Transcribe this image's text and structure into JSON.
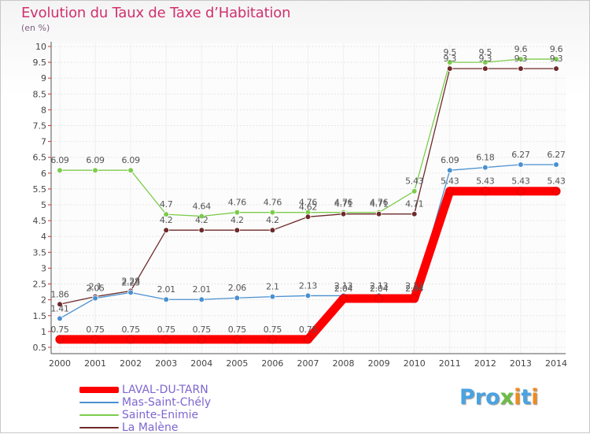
{
  "chart_data": {
    "type": "line",
    "title": "Evolution du Taux de Taxe d’Habitation",
    "subtitle": "(en %)",
    "x": [
      "2000",
      "2001",
      "2002",
      "2003",
      "2004",
      "2005",
      "2006",
      "2007",
      "2008",
      "2009",
      "2010",
      "2011",
      "2012",
      "2013",
      "2014"
    ],
    "y_ticks": [
      0.5,
      1,
      1.5,
      2,
      2.5,
      3,
      3.5,
      4,
      4.5,
      5,
      5.5,
      6,
      6.5,
      7,
      7.5,
      8,
      8.5,
      9,
      9.5,
      10
    ],
    "ylim": [
      0.3,
      10
    ],
    "grid": true,
    "legend_position": "bottom-left",
    "series": [
      {
        "name": "LAVAL-DU-TARN",
        "color": "#ff0000",
        "values": [
          0.75,
          0.75,
          0.75,
          0.75,
          0.75,
          0.75,
          0.75,
          0.75,
          2.04,
          2.04,
          2.04,
          5.43,
          5.43,
          5.43,
          5.43
        ],
        "labels": [
          "0.75",
          "0.75",
          "0.75",
          "0.75",
          "0.75",
          "0.75",
          "0.75",
          "0.75",
          "2.04",
          "2.04",
          "2.04",
          "5.43",
          "5.43",
          "5.43",
          "5.43"
        ]
      },
      {
        "name": "Mas-Saint-Chély",
        "color": "#4a90d0",
        "values": [
          1.41,
          2.05,
          2.23,
          2.01,
          2.01,
          2.06,
          2.1,
          2.13,
          2.13,
          2.13,
          2.13,
          6.09,
          6.18,
          6.27,
          6.27
        ],
        "labels": [
          "1.41",
          "2.05",
          "2.23",
          "2.01",
          "2.01",
          "2.06",
          "2.1",
          "2.13",
          "2.13",
          "2.13",
          "2.13",
          "6.09",
          "6.18",
          "6.27",
          "6.27"
        ]
      },
      {
        "name": "Sainte-Enimie",
        "color": "#7ccc4c",
        "values": [
          6.09,
          6.09,
          6.09,
          4.7,
          4.64,
          4.76,
          4.76,
          4.76,
          4.76,
          4.76,
          5.43,
          9.5,
          9.5,
          9.6,
          9.6
        ],
        "labels": [
          "6.09",
          "6.09",
          "6.09",
          "4.7",
          "4.64",
          "4.76",
          "4.76",
          "4.76",
          "4.76",
          "4.76",
          "5.43",
          "9.5",
          "9.5",
          "9.6",
          "9.6"
        ]
      },
      {
        "name": "La Malène",
        "color": "#6e2a2a",
        "values": [
          1.86,
          2.1,
          2.28,
          4.2,
          4.2,
          4.2,
          4.2,
          4.62,
          4.71,
          4.71,
          4.71,
          9.3,
          9.3,
          9.3,
          9.3
        ],
        "labels": [
          "1.86",
          "2.1",
          "2.28",
          "4.2",
          "4.2",
          "4.2",
          "4.2",
          "4.62",
          "4.71",
          "4.71",
          "4.71",
          "9.3",
          "9.3",
          "9.3",
          "9.3"
        ]
      }
    ]
  },
  "brand": {
    "p1": "Pro",
    "x": "x",
    "i1": "i",
    "t": "t",
    "i2": "i"
  }
}
